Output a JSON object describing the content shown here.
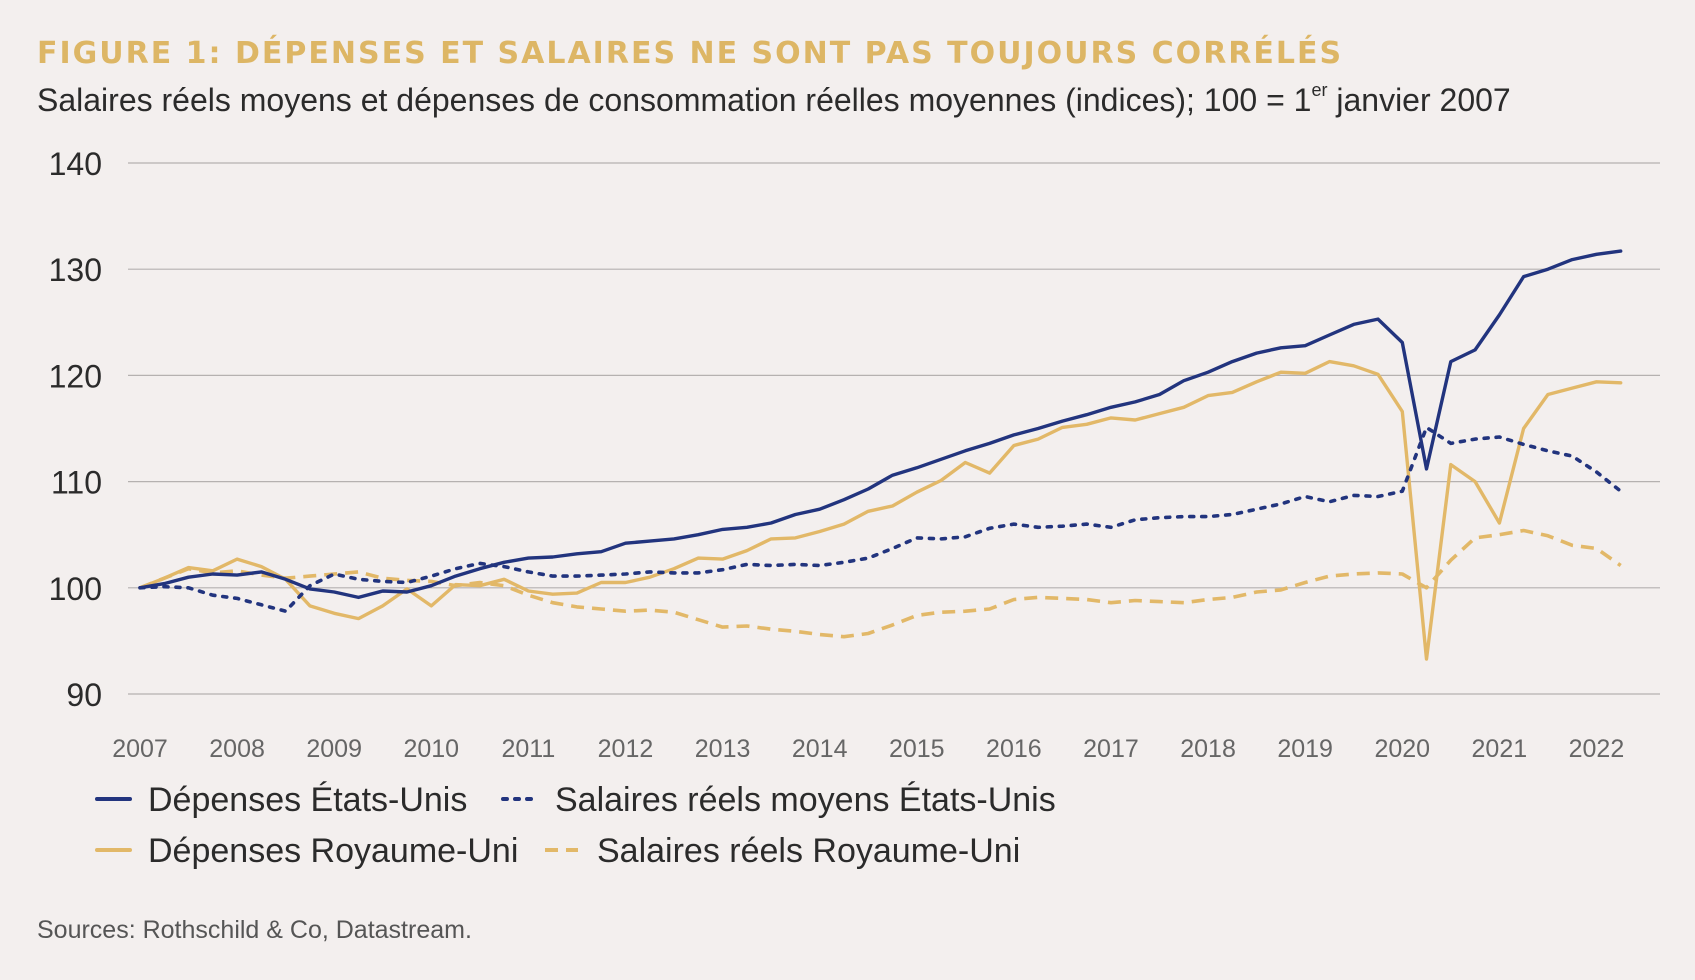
{
  "title": "FIGURE 1: DÉPENSES ET SALAIRES NE SONT PAS TOUJOURS CORRÉLÉS",
  "subtitle": {
    "before": "Salaires réels moyens et dépenses de consommation réelles moyennes (indices); 100 = 1",
    "sup": "er",
    "after": " janvier 2007"
  },
  "source": "Sources: Rothschild & Co, Datastream.",
  "colors": {
    "background": "#f3efee",
    "navy": "#22347e",
    "gold": "#e2b868",
    "grid": "#b5b1b0",
    "text": "#2b2b2b"
  },
  "chart_data": {
    "type": "line",
    "ylim": [
      90,
      140
    ],
    "yticks": [
      90,
      100,
      110,
      120,
      130,
      140
    ],
    "xlim": [
      2007,
      2022.5
    ],
    "xticks": [
      "2007",
      "2008",
      "2009",
      "2010",
      "2011",
      "2012",
      "2013",
      "2014",
      "2015",
      "2016",
      "2017",
      "2018",
      "2019",
      "2020",
      "2021",
      "2022"
    ],
    "grid": true,
    "legend_position": "bottom",
    "series": [
      {
        "name": "Dépenses États-Unis",
        "color": "#22347e",
        "dash": "solid",
        "points": [
          [
            2007.0,
            100.0
          ],
          [
            2007.25,
            100.4
          ],
          [
            2007.5,
            101.0
          ],
          [
            2007.75,
            101.3
          ],
          [
            2008.0,
            101.2
          ],
          [
            2008.25,
            101.5
          ],
          [
            2008.5,
            100.8
          ],
          [
            2008.75,
            99.9
          ],
          [
            2009.0,
            99.6
          ],
          [
            2009.25,
            99.1
          ],
          [
            2009.5,
            99.7
          ],
          [
            2009.75,
            99.6
          ],
          [
            2010.0,
            100.2
          ],
          [
            2010.25,
            101.1
          ],
          [
            2010.5,
            101.8
          ],
          [
            2010.75,
            102.4
          ],
          [
            2011.0,
            102.8
          ],
          [
            2011.25,
            102.9
          ],
          [
            2011.5,
            103.2
          ],
          [
            2011.75,
            103.4
          ],
          [
            2012.0,
            104.2
          ],
          [
            2012.25,
            104.4
          ],
          [
            2012.5,
            104.6
          ],
          [
            2012.75,
            105.0
          ],
          [
            2013.0,
            105.5
          ],
          [
            2013.25,
            105.7
          ],
          [
            2013.5,
            106.1
          ],
          [
            2013.75,
            106.9
          ],
          [
            2014.0,
            107.4
          ],
          [
            2014.25,
            108.3
          ],
          [
            2014.5,
            109.3
          ],
          [
            2014.75,
            110.6
          ],
          [
            2015.0,
            111.3
          ],
          [
            2015.25,
            112.1
          ],
          [
            2015.5,
            112.9
          ],
          [
            2015.75,
            113.6
          ],
          [
            2016.0,
            114.4
          ],
          [
            2016.25,
            115.0
          ],
          [
            2016.5,
            115.7
          ],
          [
            2016.75,
            116.3
          ],
          [
            2017.0,
            117.0
          ],
          [
            2017.25,
            117.5
          ],
          [
            2017.5,
            118.2
          ],
          [
            2017.75,
            119.5
          ],
          [
            2018.0,
            120.3
          ],
          [
            2018.25,
            121.3
          ],
          [
            2018.5,
            122.1
          ],
          [
            2018.75,
            122.6
          ],
          [
            2019.0,
            122.8
          ],
          [
            2019.25,
            123.8
          ],
          [
            2019.5,
            124.8
          ],
          [
            2019.75,
            125.3
          ],
          [
            2020.0,
            123.1
          ],
          [
            2020.25,
            111.2
          ],
          [
            2020.5,
            121.3
          ],
          [
            2020.75,
            122.4
          ],
          [
            2021.0,
            125.7
          ],
          [
            2021.25,
            129.3
          ],
          [
            2021.5,
            130.0
          ],
          [
            2021.75,
            130.9
          ],
          [
            2022.0,
            131.4
          ],
          [
            2022.25,
            131.7
          ]
        ]
      },
      {
        "name": "Salaires réels moyens États-Unis",
        "color": "#22347e",
        "dash": "dotted",
        "points": [
          [
            2007.0,
            100.0
          ],
          [
            2007.25,
            100.1
          ],
          [
            2007.5,
            100.0
          ],
          [
            2007.75,
            99.3
          ],
          [
            2008.0,
            99.0
          ],
          [
            2008.25,
            98.4
          ],
          [
            2008.5,
            97.8
          ],
          [
            2008.75,
            100.2
          ],
          [
            2009.0,
            101.3
          ],
          [
            2009.25,
            100.8
          ],
          [
            2009.5,
            100.6
          ],
          [
            2009.75,
            100.5
          ],
          [
            2010.0,
            101.1
          ],
          [
            2010.25,
            101.8
          ],
          [
            2010.5,
            102.3
          ],
          [
            2010.75,
            102.0
          ],
          [
            2011.0,
            101.5
          ],
          [
            2011.25,
            101.1
          ],
          [
            2011.5,
            101.1
          ],
          [
            2011.75,
            101.2
          ],
          [
            2012.0,
            101.3
          ],
          [
            2012.25,
            101.5
          ],
          [
            2012.5,
            101.4
          ],
          [
            2012.75,
            101.4
          ],
          [
            2013.0,
            101.7
          ],
          [
            2013.25,
            102.2
          ],
          [
            2013.5,
            102.1
          ],
          [
            2013.75,
            102.2
          ],
          [
            2014.0,
            102.1
          ],
          [
            2014.25,
            102.4
          ],
          [
            2014.5,
            102.8
          ],
          [
            2014.75,
            103.7
          ],
          [
            2015.0,
            104.7
          ],
          [
            2015.25,
            104.6
          ],
          [
            2015.5,
            104.8
          ],
          [
            2015.75,
            105.6
          ],
          [
            2016.0,
            106.0
          ],
          [
            2016.25,
            105.7
          ],
          [
            2016.5,
            105.8
          ],
          [
            2016.75,
            106.0
          ],
          [
            2017.0,
            105.7
          ],
          [
            2017.25,
            106.4
          ],
          [
            2017.5,
            106.6
          ],
          [
            2017.75,
            106.7
          ],
          [
            2018.0,
            106.7
          ],
          [
            2018.25,
            106.9
          ],
          [
            2018.5,
            107.4
          ],
          [
            2018.75,
            107.9
          ],
          [
            2019.0,
            108.6
          ],
          [
            2019.25,
            108.1
          ],
          [
            2019.5,
            108.7
          ],
          [
            2019.75,
            108.6
          ],
          [
            2020.0,
            109.1
          ],
          [
            2020.25,
            115.1
          ],
          [
            2020.5,
            113.6
          ],
          [
            2020.75,
            114.0
          ],
          [
            2021.0,
            114.2
          ],
          [
            2021.25,
            113.5
          ],
          [
            2021.5,
            112.9
          ],
          [
            2021.75,
            112.4
          ],
          [
            2022.0,
            110.9
          ],
          [
            2022.25,
            109.1
          ]
        ]
      },
      {
        "name": "Dépenses Royaume-Uni",
        "color": "#e2b868",
        "dash": "solid",
        "points": [
          [
            2007.0,
            100.0
          ],
          [
            2007.25,
            100.9
          ],
          [
            2007.5,
            101.9
          ],
          [
            2007.75,
            101.6
          ],
          [
            2008.0,
            102.7
          ],
          [
            2008.25,
            102.0
          ],
          [
            2008.5,
            100.8
          ],
          [
            2008.75,
            98.3
          ],
          [
            2009.0,
            97.6
          ],
          [
            2009.25,
            97.1
          ],
          [
            2009.5,
            98.3
          ],
          [
            2009.75,
            99.9
          ],
          [
            2010.0,
            98.3
          ],
          [
            2010.25,
            100.3
          ],
          [
            2010.5,
            100.2
          ],
          [
            2010.75,
            100.8
          ],
          [
            2011.0,
            99.7
          ],
          [
            2011.25,
            99.4
          ],
          [
            2011.5,
            99.5
          ],
          [
            2011.75,
            100.5
          ],
          [
            2012.0,
            100.5
          ],
          [
            2012.25,
            101.0
          ],
          [
            2012.5,
            101.8
          ],
          [
            2012.75,
            102.8
          ],
          [
            2013.0,
            102.7
          ],
          [
            2013.25,
            103.5
          ],
          [
            2013.5,
            104.6
          ],
          [
            2013.75,
            104.7
          ],
          [
            2014.0,
            105.3
          ],
          [
            2014.25,
            106.0
          ],
          [
            2014.5,
            107.2
          ],
          [
            2014.75,
            107.7
          ],
          [
            2015.0,
            109.0
          ],
          [
            2015.25,
            110.1
          ],
          [
            2015.5,
            111.8
          ],
          [
            2015.75,
            110.8
          ],
          [
            2016.0,
            113.4
          ],
          [
            2016.25,
            114.0
          ],
          [
            2016.5,
            115.1
          ],
          [
            2016.75,
            115.4
          ],
          [
            2017.0,
            116.0
          ],
          [
            2017.25,
            115.8
          ],
          [
            2017.5,
            116.4
          ],
          [
            2017.75,
            117.0
          ],
          [
            2018.0,
            118.1
          ],
          [
            2018.25,
            118.4
          ],
          [
            2018.5,
            119.4
          ],
          [
            2018.75,
            120.3
          ],
          [
            2019.0,
            120.2
          ],
          [
            2019.25,
            121.3
          ],
          [
            2019.5,
            120.9
          ],
          [
            2019.75,
            120.1
          ],
          [
            2020.0,
            116.6
          ],
          [
            2020.25,
            93.3
          ],
          [
            2020.5,
            111.6
          ],
          [
            2020.75,
            110.0
          ],
          [
            2021.0,
            106.1
          ],
          [
            2021.25,
            115.0
          ],
          [
            2021.5,
            118.2
          ],
          [
            2021.75,
            118.8
          ],
          [
            2022.0,
            119.4
          ],
          [
            2022.25,
            119.3
          ]
        ]
      },
      {
        "name": "Salaires réels Royaume-Uni",
        "color": "#e2b868",
        "dash": "dashed",
        "points": [
          [
            2007.0,
            100.0
          ],
          [
            2007.25,
            100.9
          ],
          [
            2007.5,
            101.8
          ],
          [
            2007.75,
            101.4
          ],
          [
            2008.0,
            101.6
          ],
          [
            2008.25,
            101.2
          ],
          [
            2008.5,
            100.9
          ],
          [
            2008.75,
            101.1
          ],
          [
            2009.0,
            101.3
          ],
          [
            2009.25,
            101.5
          ],
          [
            2009.5,
            100.9
          ],
          [
            2009.75,
            100.7
          ],
          [
            2010.0,
            100.6
          ],
          [
            2010.25,
            100.2
          ],
          [
            2010.5,
            100.5
          ],
          [
            2010.75,
            100.2
          ],
          [
            2011.0,
            99.3
          ],
          [
            2011.25,
            98.6
          ],
          [
            2011.5,
            98.2
          ],
          [
            2011.75,
            98.0
          ],
          [
            2012.0,
            97.8
          ],
          [
            2012.25,
            97.9
          ],
          [
            2012.5,
            97.7
          ],
          [
            2012.75,
            97.0
          ],
          [
            2013.0,
            96.3
          ],
          [
            2013.25,
            96.4
          ],
          [
            2013.5,
            96.1
          ],
          [
            2013.75,
            95.9
          ],
          [
            2014.0,
            95.6
          ],
          [
            2014.25,
            95.4
          ],
          [
            2014.5,
            95.7
          ],
          [
            2014.75,
            96.5
          ],
          [
            2015.0,
            97.4
          ],
          [
            2015.25,
            97.7
          ],
          [
            2015.5,
            97.8
          ],
          [
            2015.75,
            98.0
          ],
          [
            2016.0,
            98.9
          ],
          [
            2016.25,
            99.1
          ],
          [
            2016.5,
            99.0
          ],
          [
            2016.75,
            98.9
          ],
          [
            2017.0,
            98.6
          ],
          [
            2017.25,
            98.8
          ],
          [
            2017.5,
            98.7
          ],
          [
            2017.75,
            98.6
          ],
          [
            2018.0,
            98.9
          ],
          [
            2018.25,
            99.1
          ],
          [
            2018.5,
            99.6
          ],
          [
            2018.75,
            99.8
          ],
          [
            2019.0,
            100.5
          ],
          [
            2019.25,
            101.1
          ],
          [
            2019.5,
            101.3
          ],
          [
            2019.75,
            101.4
          ],
          [
            2020.0,
            101.3
          ],
          [
            2020.25,
            100.0
          ],
          [
            2020.5,
            102.6
          ],
          [
            2020.75,
            104.7
          ],
          [
            2021.0,
            105.0
          ],
          [
            2021.25,
            105.4
          ],
          [
            2021.5,
            104.9
          ],
          [
            2021.75,
            104.0
          ],
          [
            2022.0,
            103.7
          ],
          [
            2022.25,
            102.1
          ]
        ]
      }
    ]
  }
}
